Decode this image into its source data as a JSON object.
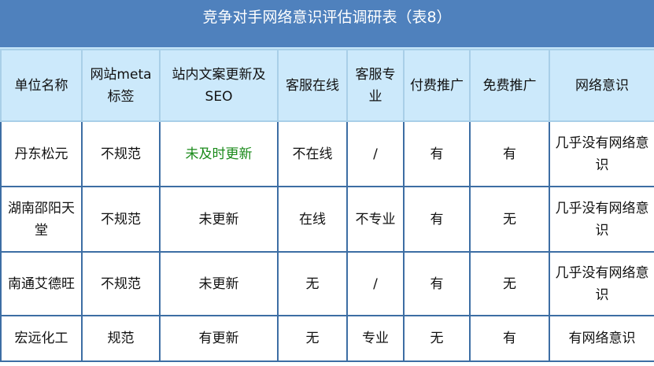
{
  "title": "竞争对手网络意识评估调研表（表8）",
  "headers": [
    "单位名称",
    "网站meta标签",
    "站内文案更新及SEO",
    "客服在线",
    "客服专业",
    "付费推广",
    "免费推广",
    "网络意识"
  ],
  "rows": [
    [
      "丹东松元",
      "不规范",
      "未及时更新",
      "不在线",
      "/",
      "有",
      "有",
      "几乎没有网络意识"
    ],
    [
      "湖南邵阳天堂",
      "不规范",
      "未更新",
      "在线",
      "不专业",
      "有",
      "无",
      "几乎没有网络意识"
    ],
    [
      "南通艾德旺",
      "不规范",
      "未更新",
      "无",
      "/",
      "有",
      "无",
      "几乎没有网络意识"
    ],
    [
      "宏远化工",
      "规范",
      "有更新",
      "无",
      "专业",
      "无",
      "有",
      "有网络意识"
    ]
  ],
  "highlight_color": "#1a8a1a"
}
